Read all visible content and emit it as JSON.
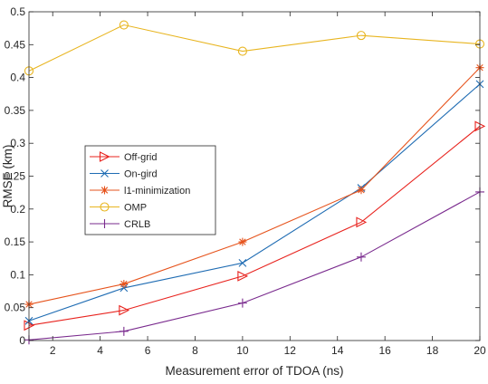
{
  "chart_data": {
    "type": "line",
    "title": "",
    "xlabel": "Measurement error of TDOA (ns)",
    "ylabel": "RMSE (km)",
    "xlim": [
      1,
      20
    ],
    "ylim": [
      0,
      0.5
    ],
    "xticks": [
      2,
      4,
      6,
      8,
      10,
      12,
      14,
      16,
      18,
      20
    ],
    "yticks": [
      0,
      0.05,
      0.1,
      0.15,
      0.2,
      0.25,
      0.3,
      0.35,
      0.4,
      0.45,
      0.5
    ],
    "xtick_labels": [
      "2",
      "4",
      "6",
      "8",
      "10",
      "12",
      "14",
      "16",
      "18",
      "20"
    ],
    "ytick_labels": [
      "0",
      "0.05",
      "0.1",
      "0.15",
      "0.2",
      "0.25",
      "0.3",
      "0.35",
      "0.4",
      "0.45",
      "0.5"
    ],
    "grid": false,
    "legend_position": "middle-left",
    "x": [
      1,
      5,
      10,
      15,
      20
    ],
    "series": [
      {
        "name": "Off-grid",
        "color": "#e8231e",
        "marker": "triangle-right",
        "values": [
          0.023,
          0.046,
          0.098,
          0.18,
          0.326
        ]
      },
      {
        "name": "On-gird",
        "color": "#1f6cb3",
        "marker": "x",
        "values": [
          0.03,
          0.08,
          0.118,
          0.232,
          0.39
        ]
      },
      {
        "name": "l1-minimization",
        "color": "#e6531c",
        "marker": "asterisk",
        "values": [
          0.055,
          0.086,
          0.15,
          0.229,
          0.415
        ]
      },
      {
        "name": "OMP",
        "color": "#e8b520",
        "marker": "circle",
        "values": [
          0.41,
          0.48,
          0.44,
          0.464,
          0.451
        ]
      },
      {
        "name": "CRLB",
        "color": "#7a2b8e",
        "marker": "plus",
        "values": [
          0.001,
          0.014,
          0.057,
          0.127,
          0.226
        ]
      }
    ]
  }
}
